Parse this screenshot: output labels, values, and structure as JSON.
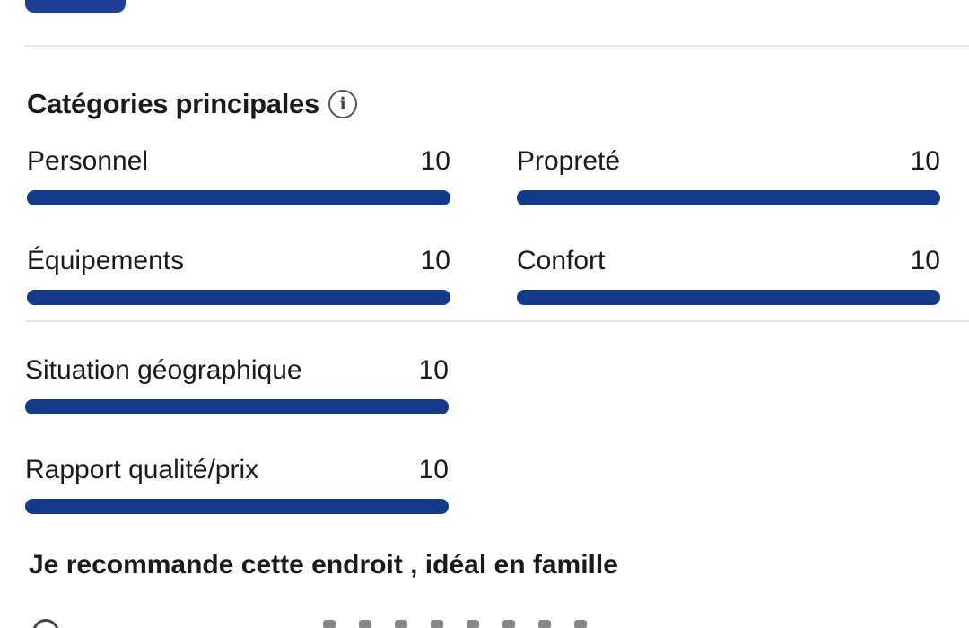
{
  "section": {
    "title": "Catégories principales",
    "info_icon": "info-icon"
  },
  "ratings": [
    {
      "label": "Personnel",
      "score": "10",
      "fill": 1.0
    },
    {
      "label": "Propreté",
      "score": "10",
      "fill": 1.0
    },
    {
      "label": "Équipements",
      "score": "10",
      "fill": 1.0
    },
    {
      "label": "Confort",
      "score": "10",
      "fill": 1.0
    },
    {
      "label": "Situation géographique",
      "score": "10",
      "fill": 1.0
    },
    {
      "label": "Rapport qualité/prix",
      "score": "10",
      "fill": 1.0
    }
  ],
  "review": {
    "title": "Je recommande cette endroit , idéal en famille"
  },
  "colors": {
    "bar": "#143a8a",
    "bar_track": "#e7e7e7",
    "button": "#1d3f94"
  }
}
